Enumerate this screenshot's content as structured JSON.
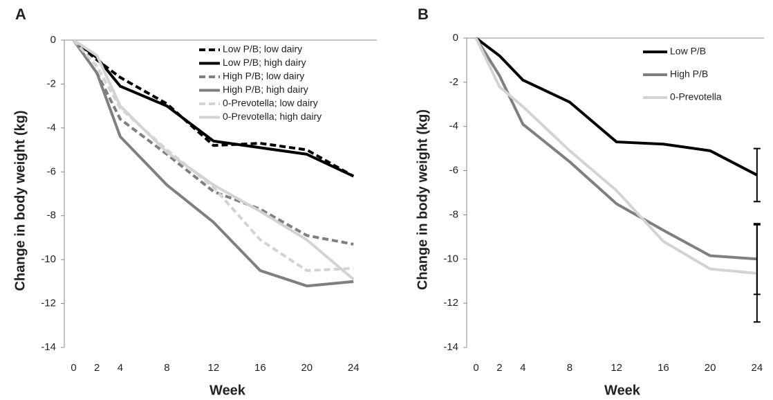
{
  "chart_data": [
    {
      "type": "line",
      "label": "A",
      "xlabel": "Week",
      "ylabel": "Change in body weight (kg)",
      "x": [
        0,
        2,
        4,
        8,
        12,
        16,
        20,
        24
      ],
      "xlim": [
        -0.8,
        26
      ],
      "xticks": [
        0,
        2,
        4,
        8,
        12,
        16,
        20,
        24
      ],
      "ylim": [
        -14,
        0
      ],
      "yticks": [
        0,
        -2,
        -4,
        -6,
        -8,
        -10,
        -12,
        -14
      ],
      "legend": "upper right",
      "series": [
        {
          "name": "Low P/B; low dairy",
          "color": "#000000",
          "dashed": true,
          "values": [
            0,
            -0.9,
            -1.7,
            -2.9,
            -4.8,
            -4.7,
            -5.0,
            -6.2
          ]
        },
        {
          "name": "Low P/B; high dairy",
          "color": "#000000",
          "dashed": false,
          "values": [
            0,
            -0.8,
            -2.1,
            -3.0,
            -4.6,
            -4.9,
            -5.2,
            -6.2
          ]
        },
        {
          "name": "High P/B; low dairy",
          "color": "#7f7f7f",
          "dashed": true,
          "values": [
            0,
            -1.5,
            -3.6,
            -5.2,
            -6.9,
            -7.7,
            -8.9,
            -9.3
          ]
        },
        {
          "name": "High P/B; high dairy",
          "color": "#7f7f7f",
          "dashed": false,
          "values": [
            0,
            -1.5,
            -4.4,
            -6.6,
            -8.3,
            -10.5,
            -11.2,
            -11.0
          ]
        },
        {
          "name": "0-Prevotella; low dairy",
          "color": "#d3d3d3",
          "dashed": true,
          "values": [
            0,
            -1.2,
            -3.1,
            -5.0,
            -6.7,
            -9.1,
            -10.5,
            -10.4
          ]
        },
        {
          "name": "0-Prevotella; high dairy",
          "color": "#d3d3d3",
          "dashed": false,
          "values": [
            0,
            -0.7,
            -3.0,
            -5.1,
            -6.6,
            -7.8,
            -9.1,
            -10.9
          ]
        }
      ]
    },
    {
      "type": "line",
      "label": "B",
      "xlabel": "Week",
      "ylabel": "Change in body weight (kg)",
      "x": [
        0,
        2,
        4,
        8,
        12,
        16,
        20,
        24
      ],
      "xlim": [
        -0.8,
        24.6
      ],
      "xticks": [
        0,
        2,
        4,
        8,
        12,
        16,
        20,
        24
      ],
      "ylim": [
        -14,
        0
      ],
      "yticks": [
        0,
        -2,
        -4,
        -6,
        -8,
        -10,
        -12,
        -14
      ],
      "legend": "upper right",
      "series": [
        {
          "name": "Low P/B",
          "color": "#000000",
          "dashed": false,
          "values": [
            0,
            -0.8,
            -1.9,
            -2.9,
            -4.7,
            -4.8,
            -5.1,
            -6.2
          ],
          "errors": [
            null,
            null,
            null,
            null,
            null,
            null,
            null,
            1.2
          ]
        },
        {
          "name": "High P/B",
          "color": "#7f7f7f",
          "dashed": false,
          "values": [
            0,
            -1.7,
            -3.9,
            -5.6,
            -7.5,
            -8.7,
            -9.85,
            -10.0
          ],
          "errors": [
            null,
            null,
            null,
            null,
            null,
            null,
            null,
            1.6
          ]
        },
        {
          "name": "0-Prevotella",
          "color": "#d3d3d3",
          "dashed": false,
          "values": [
            0,
            -2.2,
            -3.1,
            -5.1,
            -6.9,
            -9.2,
            -10.45,
            -10.65
          ],
          "errors": [
            null,
            null,
            null,
            null,
            null,
            null,
            null,
            2.2
          ]
        }
      ]
    }
  ]
}
